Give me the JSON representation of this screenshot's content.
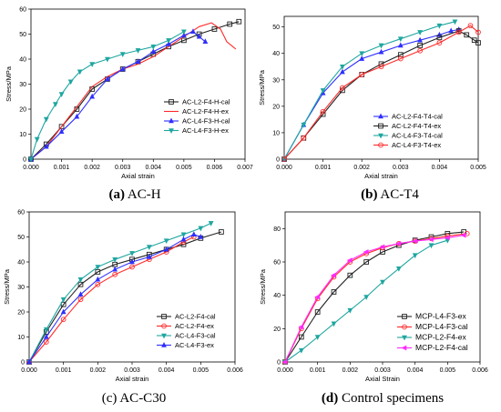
{
  "colors": {
    "black": "#222222",
    "red": "#ff2a2a",
    "blue": "#2f2fff",
    "teal": "#1fa6a0",
    "magenta": "#ff2aff",
    "green": "#1a9e1a"
  },
  "chart_data": [
    {
      "type": "line",
      "caption_bold": "(a)",
      "caption_rest": " AC-H",
      "xlabel": "Axial strain",
      "ylabel": "Stress/MPa",
      "xlim": [
        0,
        0.007
      ],
      "ylim": [
        0,
        60
      ],
      "xticks": [
        0.0,
        0.001,
        0.002,
        0.003,
        0.004,
        0.005,
        0.006,
        0.007
      ],
      "xtick_labels": [
        "0.000",
        "0.001",
        "0.002",
        "0.003",
        "0.004",
        "0.005",
        "0.006",
        "0.007"
      ],
      "yticks": [
        0,
        10,
        20,
        30,
        40,
        50,
        60
      ],
      "ytick_labels": [
        "0",
        "10",
        "20",
        "30",
        "40",
        "50",
        "60"
      ],
      "legend_position": "lower-right",
      "series": [
        {
          "name": "AC-L2-F4-H-cal",
          "color": "#222222",
          "marker": "square",
          "x": [
            0,
            0.0005,
            0.001,
            0.0015,
            0.002,
            0.0025,
            0.003,
            0.0035,
            0.004,
            0.0045,
            0.005,
            0.0055,
            0.006,
            0.0065,
            0.0068
          ],
          "y": [
            0,
            6,
            13,
            20,
            28,
            32,
            36,
            39,
            42,
            45,
            47.5,
            50,
            52,
            54,
            55
          ]
        },
        {
          "name": "AC-L2-F4-H-ex",
          "color": "#ff2a2a",
          "marker": "none",
          "x": [
            0,
            0.0005,
            0.001,
            0.0015,
            0.002,
            0.0025,
            0.003,
            0.0035,
            0.004,
            0.0045,
            0.005,
            0.0055,
            0.0059,
            0.0062,
            0.0064,
            0.0066,
            0.0067
          ],
          "y": [
            0,
            5,
            13,
            21,
            29,
            33,
            36,
            38,
            41,
            45,
            49,
            53,
            54.5,
            52,
            47,
            45,
            44
          ]
        },
        {
          "name": "AC-L4-F3-H-cal",
          "color": "#2f2fff",
          "marker": "triangle",
          "x": [
            0,
            0.0005,
            0.001,
            0.0015,
            0.002,
            0.0025,
            0.003,
            0.0035,
            0.004,
            0.0045,
            0.005,
            0.0053,
            0.0055,
            0.0057
          ],
          "y": [
            0,
            5,
            11,
            17,
            25,
            32,
            36,
            39,
            43,
            46,
            49.5,
            51,
            49,
            47
          ]
        },
        {
          "name": "AC-L4-F3-H-ex",
          "color": "#1fa6a0",
          "marker": "tri-down",
          "x": [
            0,
            0.0002,
            0.0005,
            0.0008,
            0.001,
            0.0013,
            0.0016,
            0.002,
            0.0025,
            0.003,
            0.0035,
            0.004,
            0.0045,
            0.005
          ],
          "y": [
            0,
            8,
            16,
            22,
            26,
            31,
            35,
            38,
            40,
            42,
            43.5,
            45,
            47.5,
            51
          ]
        }
      ]
    },
    {
      "type": "line",
      "caption_bold": "(b)",
      "caption_rest": " AC-T4",
      "xlabel": "Axial strain",
      "ylabel": "Stress/MPa",
      "xlim": [
        0,
        0.005
      ],
      "ylim": [
        0,
        54
      ],
      "xticks": [
        0.0,
        0.001,
        0.002,
        0.003,
        0.004,
        0.005
      ],
      "xtick_labels": [
        "0.000",
        "0.001",
        "0.002",
        "0.003",
        "0.004",
        "0.005"
      ],
      "yticks": [
        0,
        10,
        20,
        30,
        40,
        50
      ],
      "ytick_labels": [
        "0",
        "10",
        "20",
        "30",
        "40",
        "50"
      ],
      "legend_position": "lower-right",
      "series": [
        {
          "name": "AC-L2-F4-T4-cal",
          "color": "#2f2fff",
          "marker": "triangle",
          "x": [
            0,
            0.0005,
            0.001,
            0.0015,
            0.002,
            0.0025,
            0.003,
            0.0035,
            0.004,
            0.0043,
            0.0045
          ],
          "y": [
            0,
            13,
            25,
            33,
            38,
            40.5,
            43,
            45,
            47,
            48.5,
            49
          ]
        },
        {
          "name": "AC-L2-F4-T4-ex",
          "color": "#222222",
          "marker": "square",
          "x": [
            0,
            0.0005,
            0.001,
            0.0015,
            0.002,
            0.0025,
            0.003,
            0.0035,
            0.004,
            0.0045,
            0.0047,
            0.0049,
            0.005
          ],
          "y": [
            0,
            8,
            17,
            26,
            32,
            36,
            39.5,
            43,
            46,
            48.5,
            47,
            45,
            44
          ]
        },
        {
          "name": "AC-L4-F3-T4-cal",
          "color": "#1fa6a0",
          "marker": "tri-down",
          "x": [
            0,
            0.0005,
            0.001,
            0.0015,
            0.002,
            0.0025,
            0.003,
            0.0035,
            0.004,
            0.0044
          ],
          "y": [
            0,
            13,
            26,
            35,
            40,
            43,
            45.5,
            48,
            50.5,
            52
          ]
        },
        {
          "name": "AC-L4-F3-T4-ex",
          "color": "#ff2a2a",
          "marker": "circle",
          "x": [
            0,
            0.0005,
            0.001,
            0.0015,
            0.002,
            0.0025,
            0.003,
            0.0035,
            0.004,
            0.0045,
            0.0048,
            0.005
          ],
          "y": [
            0,
            8,
            18,
            27,
            32,
            35,
            38,
            41,
            44,
            48,
            50.5,
            48
          ]
        }
      ]
    },
    {
      "type": "line",
      "caption_bold": "",
      "caption_rest": "(c) AC-C30",
      "xlabel": "Axial strain",
      "ylabel": "Stress/MPa",
      "xlim": [
        0,
        0.006
      ],
      "ylim": [
        0,
        60
      ],
      "xticks": [
        0.0,
        0.001,
        0.002,
        0.003,
        0.004,
        0.005,
        0.006
      ],
      "xtick_labels": [
        "0.000",
        "0.001",
        "0.002",
        "0.003",
        "0.004",
        "0.005",
        "0.006"
      ],
      "yticks": [
        0,
        10,
        20,
        30,
        40,
        50,
        60
      ],
      "ytick_labels": [
        "0",
        "10",
        "20",
        "30",
        "40",
        "50",
        "60"
      ],
      "legend_position": "lower-right",
      "series": [
        {
          "name": "AC-L2-F4-cal",
          "color": "#222222",
          "marker": "square",
          "x": [
            0,
            0.0005,
            0.001,
            0.0015,
            0.002,
            0.0025,
            0.003,
            0.0035,
            0.004,
            0.0045,
            0.005,
            0.0056
          ],
          "y": [
            0,
            12,
            23,
            31,
            36,
            39,
            41,
            43,
            45,
            47,
            49.5,
            52
          ]
        },
        {
          "name": "AC-L2-F4-ex",
          "color": "#ff2a2a",
          "marker": "circle",
          "x": [
            0,
            0.0005,
            0.001,
            0.0015,
            0.002,
            0.0025,
            0.003,
            0.0035,
            0.004,
            0.0045,
            0.0048
          ],
          "y": [
            0,
            8,
            17,
            25,
            31,
            35,
            38,
            41,
            44,
            48,
            50
          ]
        },
        {
          "name": "AC-L4-F3-cal",
          "color": "#1fa6a0",
          "marker": "tri-down",
          "x": [
            0,
            0.0005,
            0.001,
            0.0015,
            0.002,
            0.0025,
            0.003,
            0.0035,
            0.004,
            0.0045,
            0.005,
            0.0053
          ],
          "y": [
            0,
            13,
            25,
            33,
            38,
            41,
            43.5,
            46,
            48.5,
            51,
            53.5,
            55.5
          ]
        },
        {
          "name": "AC-L4-F3-ex",
          "color": "#2f2fff",
          "marker": "triangle",
          "x": [
            0,
            0.0005,
            0.001,
            0.0015,
            0.002,
            0.0025,
            0.003,
            0.0035,
            0.004,
            0.0045,
            0.0048,
            0.005
          ],
          "y": [
            0,
            10,
            20,
            27,
            33,
            37,
            40,
            42,
            45,
            49,
            51,
            50
          ]
        }
      ]
    },
    {
      "type": "line",
      "caption_bold": "(d)",
      "caption_rest": " Control specimens",
      "xlabel": "Axial Strain",
      "ylabel": "Stress/MPa",
      "xlim": [
        0,
        0.006
      ],
      "ylim": [
        0,
        90
      ],
      "xticks": [
        0.0,
        0.001,
        0.002,
        0.003,
        0.004,
        0.005,
        0.006
      ],
      "xtick_labels": [
        "0.000",
        "0.001",
        "0.002",
        "0.003",
        "0.004",
        "0.005",
        "0.006"
      ],
      "yticks": [
        0,
        20,
        40,
        60,
        80
      ],
      "ytick_labels": [
        "0",
        "20",
        "40",
        "60",
        "80"
      ],
      "legend_position": "lower-right",
      "series": [
        {
          "name": "MCP-L4-F3-ex",
          "color": "#222222",
          "marker": "square",
          "x": [
            0,
            0.0005,
            0.001,
            0.0015,
            0.002,
            0.0025,
            0.003,
            0.0035,
            0.004,
            0.0045,
            0.005,
            0.0055
          ],
          "y": [
            0,
            15,
            30,
            42,
            52,
            60,
            66,
            70,
            73,
            75,
            77,
            78
          ]
        },
        {
          "name": "MCP-L4-F3-cal",
          "color": "#ff2a2a",
          "marker": "circle",
          "x": [
            0,
            0.0005,
            0.001,
            0.0015,
            0.002,
            0.0025,
            0.003,
            0.0035,
            0.004,
            0.0045,
            0.005,
            0.0056
          ],
          "y": [
            0,
            20,
            38,
            51,
            60,
            65,
            68.5,
            71,
            72.5,
            74,
            75.5,
            77
          ]
        },
        {
          "name": "MCP-L2-F4-ex",
          "color": "#1fa6a0",
          "marker": "tri-down",
          "x": [
            0,
            0.0005,
            0.001,
            0.0015,
            0.002,
            0.0025,
            0.003,
            0.0035,
            0.004,
            0.0045,
            0.005
          ],
          "y": [
            0,
            7,
            15,
            23,
            31,
            39,
            48,
            56,
            64,
            70,
            73
          ]
        },
        {
          "name": "MCP-L2-F4-cal",
          "color": "#ff2aff",
          "marker": "tri-left",
          "x": [
            0,
            0.0005,
            0.001,
            0.0015,
            0.002,
            0.0025,
            0.003,
            0.0035,
            0.004,
            0.0045,
            0.005,
            0.0055
          ],
          "y": [
            0,
            21,
            39,
            52,
            61,
            66,
            69,
            71,
            72.5,
            73.5,
            74.5,
            76
          ]
        }
      ]
    }
  ]
}
